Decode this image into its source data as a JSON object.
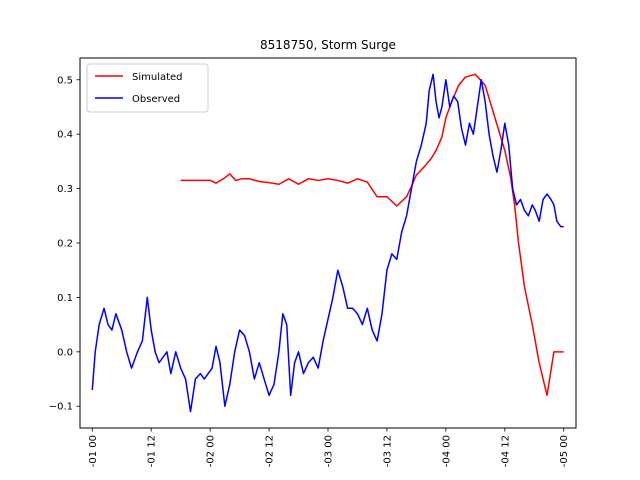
{
  "chart_data": {
    "type": "line",
    "title": "8518750, Storm Surge",
    "xlabel": "",
    "ylabel": "",
    "x_unit": "hours",
    "xlim": [
      -1.25,
      49.25
    ],
    "ylim": [
      -0.14,
      0.54
    ],
    "x_ticks": [
      0,
      6,
      12,
      18,
      24,
      30,
      36,
      42,
      48
    ],
    "x_tick_labels": [
      "-01 00",
      "-01 12",
      "-02 00",
      "-02 12",
      "-03 00",
      "-03 12",
      "-04 00",
      "-04 12",
      "-05 00"
    ],
    "y_ticks": [
      -0.1,
      0.0,
      0.1,
      0.2,
      0.3,
      0.4,
      0.5
    ],
    "y_tick_labels": [
      "−0.1",
      "0.0",
      "0.1",
      "0.2",
      "0.3",
      "0.4",
      "0.5"
    ],
    "grid": false,
    "legend_position": "top-left",
    "series": [
      {
        "name": "Simulated",
        "color": "#ff0000",
        "x": [
          9.0,
          10.0,
          11.0,
          12.0,
          12.6,
          13.5,
          14.0,
          14.6,
          15.2,
          16.0,
          17.0,
          18.0,
          19.0,
          20.0,
          21.0,
          22.0,
          23.0,
          24.0,
          25.0,
          26.0,
          27.0,
          28.0,
          29.0,
          30.0,
          31.0,
          32.0,
          32.4,
          33.0,
          33.8,
          34.5,
          35.0,
          35.6,
          36.0,
          36.6,
          37.3,
          38.0,
          39.0,
          40.0,
          41.0,
          42.0,
          42.6,
          43.0,
          43.4,
          44.0,
          44.8,
          45.5,
          46.3,
          47.0,
          47.6,
          48.0
        ],
        "y": [
          0.315,
          0.315,
          0.315,
          0.315,
          0.31,
          0.32,
          0.327,
          0.315,
          0.318,
          0.318,
          0.313,
          0.311,
          0.308,
          0.318,
          0.308,
          0.318,
          0.315,
          0.318,
          0.315,
          0.31,
          0.318,
          0.312,
          0.285,
          0.285,
          0.268,
          0.285,
          0.3,
          0.325,
          0.34,
          0.355,
          0.37,
          0.395,
          0.43,
          0.46,
          0.49,
          0.505,
          0.51,
          0.49,
          0.43,
          0.37,
          0.32,
          0.27,
          0.2,
          0.12,
          0.05,
          -0.02,
          -0.08,
          0.0,
          0.0,
          0.0
        ]
      },
      {
        "name": "Observed",
        "color": "#0000ff",
        "x": [
          0.0,
          0.3,
          0.7,
          1.2,
          1.6,
          2.0,
          2.4,
          3.0,
          3.5,
          4.0,
          4.6,
          5.1,
          5.6,
          6.0,
          6.4,
          6.8,
          7.2,
          7.6,
          8.0,
          8.5,
          9.0,
          9.5,
          10.0,
          10.5,
          11.0,
          11.4,
          11.8,
          12.2,
          12.6,
          13.0,
          13.5,
          14.0,
          14.5,
          15.0,
          15.5,
          16.0,
          16.5,
          17.0,
          17.5,
          18.0,
          18.5,
          19.0,
          19.4,
          19.8,
          20.2,
          20.6,
          21.0,
          21.5,
          22.0,
          22.5,
          23.0,
          23.5,
          24.0,
          24.5,
          25.0,
          25.5,
          26.0,
          26.5,
          27.0,
          27.5,
          28.0,
          28.5,
          29.0,
          29.5,
          30.0,
          30.5,
          31.0,
          31.5,
          32.0,
          32.5,
          33.0,
          33.5,
          34.0,
          34.3,
          34.7,
          35.0,
          35.3,
          35.6,
          36.0,
          36.4,
          36.8,
          37.2,
          37.6,
          38.0,
          38.4,
          38.8,
          39.2,
          39.6,
          40.0,
          40.4,
          40.8,
          41.2,
          41.6,
          42.0,
          42.4,
          42.8,
          43.2,
          43.6,
          44.0,
          44.4,
          44.8,
          45.1,
          45.5,
          45.9,
          46.3,
          46.7,
          47.0,
          47.3,
          47.7,
          48.0
        ],
        "y": [
          -0.07,
          0.0,
          0.05,
          0.08,
          0.05,
          0.04,
          0.07,
          0.04,
          0.0,
          -0.03,
          0.0,
          0.02,
          0.1,
          0.04,
          0.0,
          -0.02,
          -0.01,
          0.0,
          -0.04,
          0.0,
          -0.03,
          -0.05,
          -0.11,
          -0.05,
          -0.04,
          -0.05,
          -0.04,
          -0.03,
          0.01,
          -0.02,
          -0.1,
          -0.06,
          0.0,
          0.04,
          0.03,
          0.0,
          -0.05,
          -0.02,
          -0.05,
          -0.08,
          -0.06,
          0.0,
          0.07,
          0.05,
          -0.08,
          -0.02,
          0.0,
          -0.04,
          -0.02,
          -0.01,
          -0.03,
          0.02,
          0.06,
          0.1,
          0.15,
          0.12,
          0.08,
          0.08,
          0.07,
          0.05,
          0.08,
          0.04,
          0.02,
          0.07,
          0.15,
          0.18,
          0.17,
          0.22,
          0.25,
          0.3,
          0.35,
          0.38,
          0.42,
          0.48,
          0.51,
          0.46,
          0.43,
          0.45,
          0.5,
          0.45,
          0.47,
          0.46,
          0.41,
          0.38,
          0.42,
          0.4,
          0.45,
          0.5,
          0.46,
          0.4,
          0.36,
          0.33,
          0.37,
          0.42,
          0.38,
          0.3,
          0.27,
          0.28,
          0.26,
          0.25,
          0.27,
          0.26,
          0.24,
          0.28,
          0.29,
          0.28,
          0.27,
          0.24,
          0.23,
          0.23
        ]
      }
    ]
  }
}
